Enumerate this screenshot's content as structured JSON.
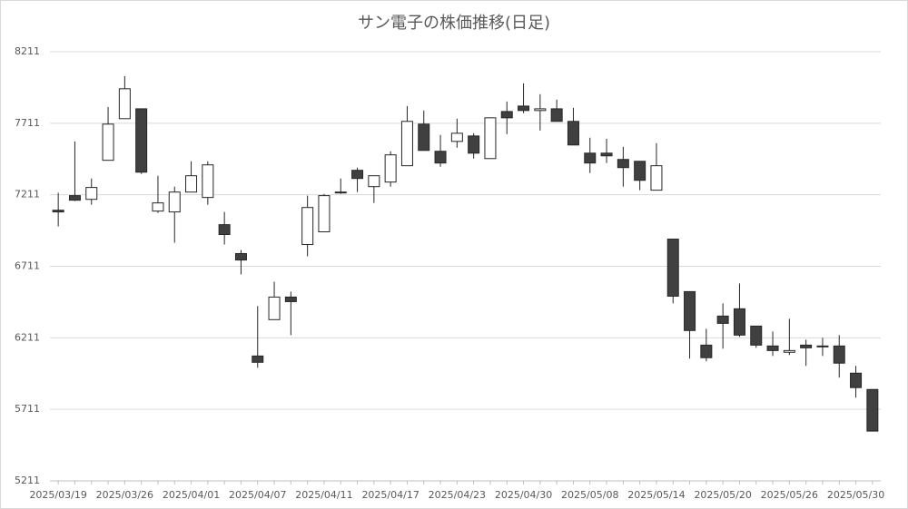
{
  "chart_data": {
    "type": "candlestick",
    "title": "サン電子の株価推移(日足)",
    "categories": [
      "2025/03/19",
      null,
      null,
      null,
      "2025/03/26",
      null,
      null,
      null,
      "2025/04/01",
      null,
      null,
      null,
      "2025/04/07",
      null,
      null,
      null,
      "2025/04/11",
      null,
      null,
      null,
      "2025/04/17",
      null,
      null,
      null,
      "2025/04/23",
      null,
      null,
      null,
      "2025/04/30",
      null,
      null,
      null,
      "2025/05/08",
      null,
      null,
      null,
      "2025/05/14",
      null,
      null,
      null,
      "2025/05/20",
      null,
      null,
      null,
      "2025/05/26",
      null,
      null,
      null,
      "2025/05/30",
      null
    ],
    "open": [
      7103,
      7205,
      7179,
      7452,
      7743,
      7812,
      7097,
      7091,
      7230,
      7192,
      7002,
      6800,
      6084,
      6338,
      6496,
      6863,
      6952,
      7230,
      7382,
      7268,
      7300,
      7414,
      7705,
      7515,
      7584,
      7622,
      7464,
      7793,
      7831,
      7800,
      7812,
      7724,
      7502,
      7502,
      7458,
      7445,
      7243,
      6901,
      6534,
      6160,
      6363,
      6414,
      6293,
      6154,
      6110,
      6160,
      6148,
      6154,
      5964,
      5850
    ],
    "high": [
      7225,
      7584,
      7325,
      7825,
      8040,
      7812,
      7344,
      7268,
      7445,
      7445,
      7091,
      6825,
      6433,
      6603,
      6534,
      7205,
      7217,
      7325,
      7401,
      7344,
      7515,
      7831,
      7800,
      7629,
      7743,
      7641,
      7749,
      7863,
      7990,
      7914,
      7876,
      7819,
      7610,
      7603,
      7546,
      7445,
      7572,
      6901,
      6534,
      6274,
      6452,
      6591,
      6293,
      6255,
      6344,
      6198,
      6211,
      6230,
      6015,
      5850
    ],
    "low": [
      6990,
      7167,
      7141,
      7452,
      7743,
      7357,
      7084,
      6876,
      7230,
      7141,
      6863,
      6654,
      6002,
      6338,
      6230,
      6781,
      6952,
      7217,
      7230,
      7154,
      7268,
      7414,
      7521,
      7407,
      7540,
      7464,
      7464,
      7635,
      7781,
      7660,
      7724,
      7559,
      7363,
      7433,
      7268,
      7243,
      7243,
      6452,
      6066,
      6047,
      6135,
      6217,
      6141,
      6084,
      6091,
      6015,
      6084,
      5933,
      5793,
      5559
    ],
    "close": [
      7091,
      7173,
      7262,
      7705,
      7952,
      7369,
      7154,
      7230,
      7344,
      7420,
      6933,
      6755,
      6040,
      6496,
      6464,
      7122,
      7205,
      7224,
      7325,
      7344,
      7490,
      7724,
      7521,
      7433,
      7641,
      7502,
      7749,
      7749,
      7800,
      7812,
      7724,
      7559,
      7433,
      7483,
      7401,
      7312,
      7414,
      6502,
      6262,
      6072,
      6312,
      6230,
      6160,
      6122,
      6122,
      6141,
      6154,
      6034,
      5863,
      5559
    ],
    "up_color": "#ffffff",
    "down_color": "#404040",
    "line_color": "#262626",
    "ylim": [
      5211,
      8211
    ],
    "yticks": [
      5211,
      5711,
      6211,
      6711,
      7211,
      7711,
      8211
    ],
    "grid": true
  }
}
